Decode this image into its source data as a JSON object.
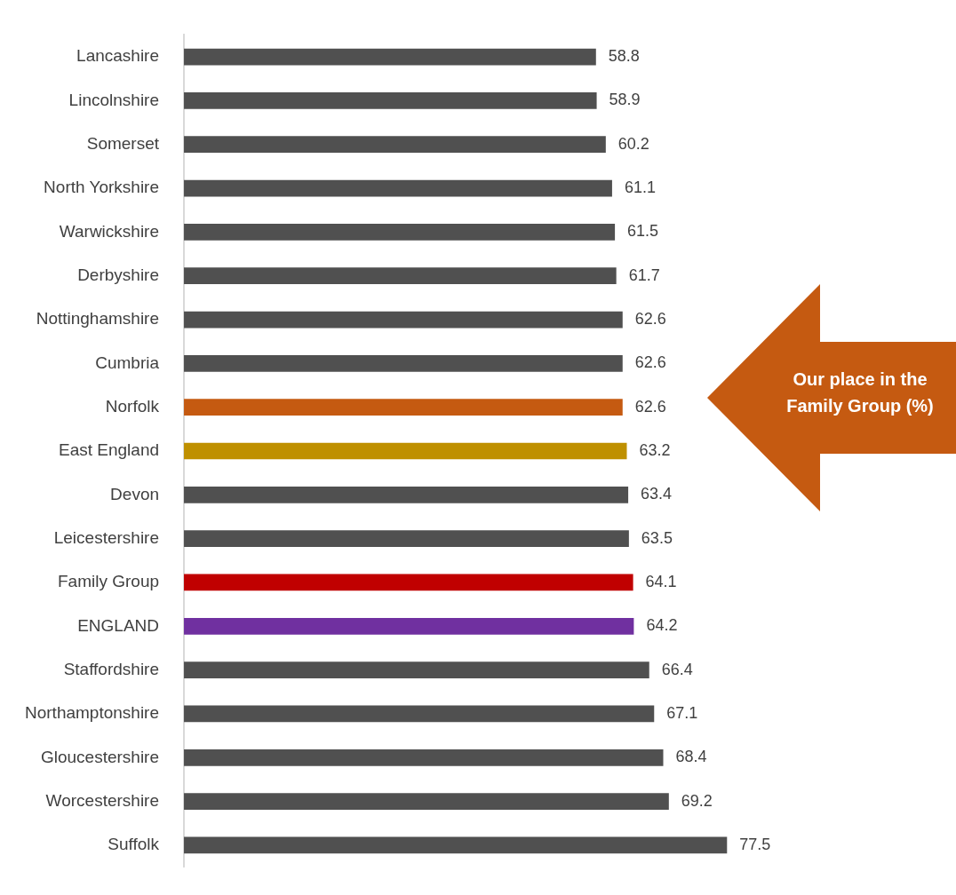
{
  "chart_data": {
    "type": "bar",
    "orientation": "horizontal",
    "categories": [
      "Lancashire",
      "Lincolnshire",
      "Somerset",
      "North Yorkshire",
      "Warwickshire",
      "Derbyshire",
      "Nottinghamshire",
      "Cumbria",
      "Norfolk",
      "East England",
      "Devon",
      "Leicestershire",
      "Family Group",
      "ENGLAND",
      "Staffordshire",
      "Northamptonshire",
      "Gloucestershire",
      "Worcestershire",
      "Suffolk"
    ],
    "values": [
      58.8,
      58.9,
      60.2,
      61.1,
      61.5,
      61.7,
      62.6,
      62.6,
      62.6,
      63.2,
      63.4,
      63.5,
      64.1,
      64.2,
      66.4,
      67.1,
      68.4,
      69.2,
      77.5
    ],
    "colors": [
      "#505050",
      "#505050",
      "#505050",
      "#505050",
      "#505050",
      "#505050",
      "#505050",
      "#505050",
      "#c55a11",
      "#bf9000",
      "#505050",
      "#505050",
      "#c00000",
      "#7030a0",
      "#505050",
      "#505050",
      "#505050",
      "#505050",
      "#505050"
    ],
    "data_labels": true,
    "legend": false,
    "tick_labels": "y",
    "annotations": [
      "Our place in the Family Group (%)"
    ]
  }
}
